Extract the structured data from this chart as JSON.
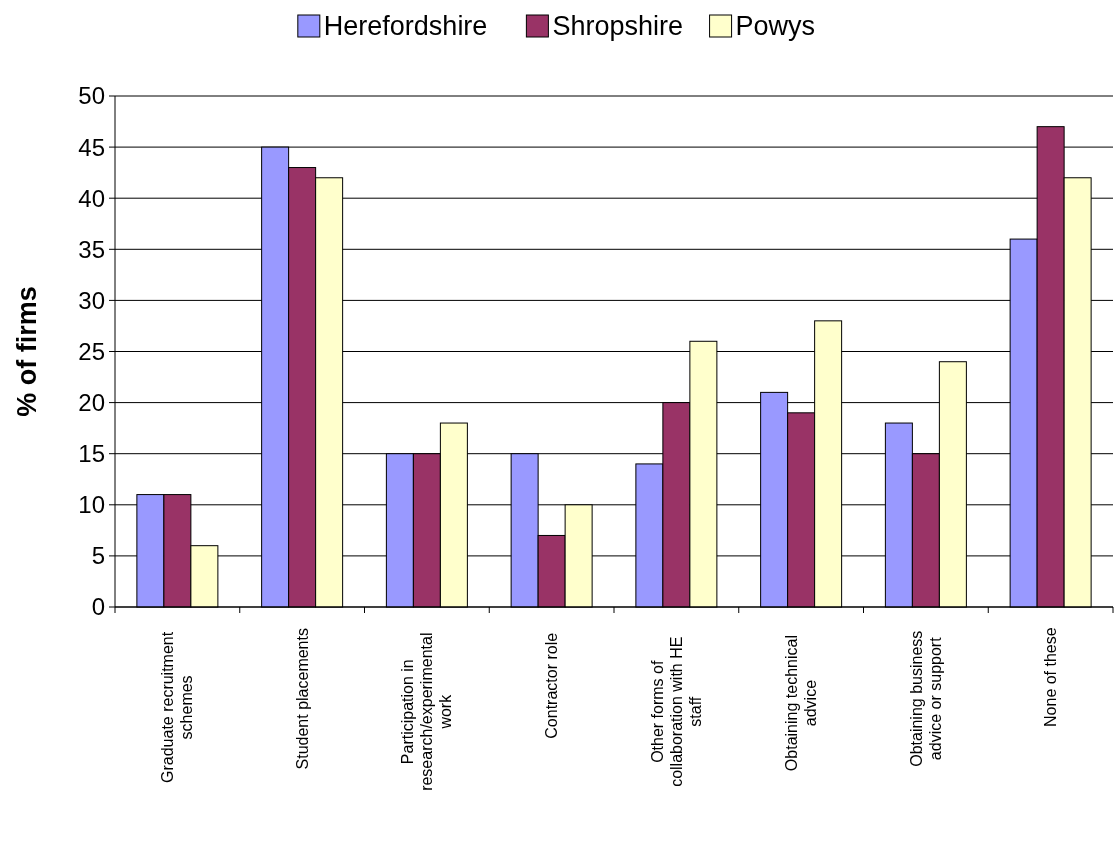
{
  "chart_data": {
    "type": "bar",
    "ylabel": "% of firms",
    "categories": [
      "Graduate recruitment schemes",
      "Student placements",
      "Participation in research/experimental work",
      "Contractor role",
      "Other forms of collaboration with HE staff",
      "Obtaining technical advice",
      "Obtaining business advice or support",
      "None of these"
    ],
    "series": [
      {
        "name": "Herefordshire",
        "color": "#9999ff",
        "values": [
          11,
          45,
          15,
          15,
          14,
          21,
          18,
          36
        ]
      },
      {
        "name": "Shropshire",
        "color": "#993366",
        "values": [
          11,
          43,
          15,
          7,
          20,
          19,
          15,
          47
        ]
      },
      {
        "name": "Powys",
        "color": "#ffffcc",
        "values": [
          6,
          42,
          18,
          10,
          26,
          28,
          24,
          42
        ]
      }
    ],
    "ylim": [
      0,
      50
    ],
    "yticks": [
      0,
      5,
      10,
      15,
      20,
      25,
      30,
      35,
      40,
      45,
      50
    ],
    "grid": "y",
    "legend": "top"
  }
}
